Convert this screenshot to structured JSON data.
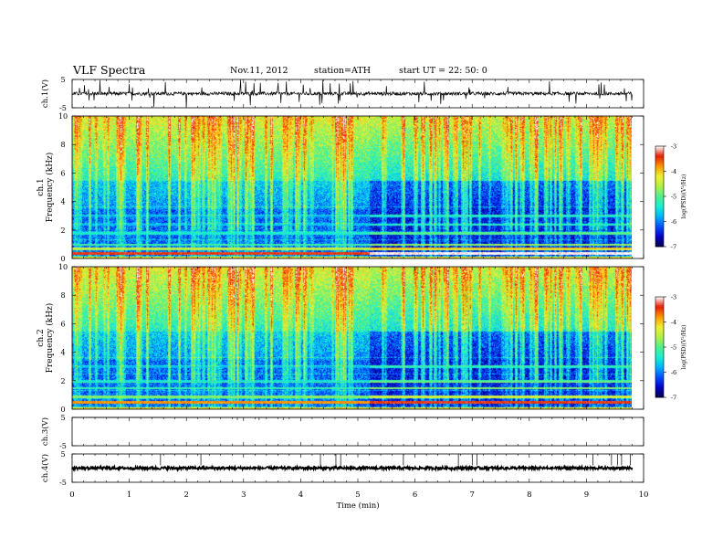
{
  "header": {
    "title": "VLF  Spectra",
    "date": "Nov.11, 2012",
    "station": "station=ATH",
    "start": "start  UT =   22: 50: 0"
  },
  "colors": {
    "spectrogram_scale": [
      "#00004a",
      "#0000c8",
      "#0050ff",
      "#00b4ff",
      "#19f0d2",
      "#50f08c",
      "#b4f046",
      "#f0f032",
      "#ff9600",
      "#e61e00",
      "#ffffff"
    ],
    "trace": "#000000"
  },
  "chart_data": [
    {
      "id": "ch1-waveform",
      "type": "line",
      "ylabel": "ch.1(V)",
      "yticks": [
        "5",
        "-5"
      ],
      "ylim": [
        -5,
        5
      ],
      "xlim": [
        0,
        10
      ],
      "series": [
        {
          "x_range": [
            0,
            9.8
          ],
          "baseline": 0,
          "amplitude": 0.6,
          "note_spikes": true
        }
      ]
    },
    {
      "id": "ch1-spectrogram",
      "type": "heatmap",
      "ylabel": "ch.1\nFrequency  (kHz)",
      "yticks": [
        "0",
        "2",
        "4",
        "6",
        "8",
        "10"
      ],
      "ylim": [
        0,
        10
      ],
      "xlim": [
        0,
        10
      ],
      "data_x_range": [
        0,
        9.8
      ],
      "colorbar": {
        "label": "log(PSD)(V²/Hz)",
        "ticks": [
          "-3",
          "-4",
          "-5",
          "-6",
          "-7"
        ],
        "range": [
          -7,
          -3
        ]
      },
      "bands_kHz": [
        {
          "f": 0.4,
          "level": -3.4
        },
        {
          "f": 0.7,
          "level": -4.6
        },
        {
          "f": 1.0,
          "level": -5.1
        },
        {
          "f": 1.8,
          "level": -5.4
        },
        {
          "f": 2.4,
          "level": -5.7
        },
        {
          "f": 3.0,
          "level": -5.9
        }
      ],
      "change_time_min": 5.2
    },
    {
      "id": "ch2-spectrogram",
      "type": "heatmap",
      "ylabel": "ch.2\nFrequency  (kHz)",
      "yticks": [
        "0",
        "2",
        "4",
        "6",
        "8",
        "10"
      ],
      "ylim": [
        0,
        10
      ],
      "xlim": [
        0,
        10
      ],
      "data_x_range": [
        0,
        9.8
      ],
      "colorbar": {
        "label": "log(PSD)(V²/Hz)",
        "ticks": [
          "-3",
          "-4",
          "-5",
          "-6",
          "-7"
        ],
        "range": [
          -7,
          -3
        ]
      },
      "bands_kHz": [
        {
          "f": 0.5,
          "level": -3.8
        },
        {
          "f": 0.9,
          "level": -4.8
        },
        {
          "f": 1.5,
          "level": -5.2
        },
        {
          "f": 2.0,
          "level": -5.5
        },
        {
          "f": 3.0,
          "level": -5.8
        }
      ],
      "change_time_min": 5.2
    },
    {
      "id": "ch3-waveform",
      "type": "line",
      "ylabel": "ch.3(V)",
      "yticks": [
        "5",
        "-5"
      ],
      "ylim": [
        -5,
        5
      ],
      "xlim": [
        0,
        10
      ],
      "series": [
        {
          "x_range": [
            0,
            9.8
          ],
          "baseline": 5,
          "amplitude": 0
        }
      ]
    },
    {
      "id": "ch4-waveform",
      "type": "line",
      "ylabel": "ch.4(V)",
      "yticks": [
        "5",
        "-5"
      ],
      "ylim": [
        -5,
        5
      ],
      "xlim": [
        0,
        10
      ],
      "series": [
        {
          "x_range": [
            0,
            9.8
          ],
          "baseline": 0,
          "amplitude": 0.5
        }
      ]
    },
    {
      "id": "time-axis",
      "type": "axis",
      "xlabel": "Time  (min)",
      "xticks": [
        "0",
        "1",
        "2",
        "3",
        "4",
        "5",
        "6",
        "7",
        "8",
        "9",
        "10"
      ],
      "xlim": [
        0,
        10
      ]
    }
  ]
}
